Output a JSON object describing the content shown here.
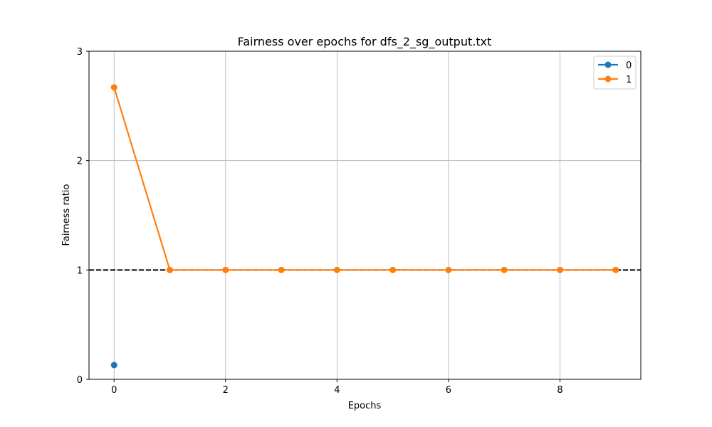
{
  "chart_data": {
    "type": "line",
    "title": "Fairness over epochs for dfs_2_sg_output.txt",
    "xlabel": "Epochs",
    "ylabel": "Fairness ratio",
    "xlim": [
      -0.45,
      9.45
    ],
    "ylim": [
      0,
      3
    ],
    "xticks": [
      0,
      2,
      4,
      6,
      8
    ],
    "yticks": [
      0,
      1,
      2,
      3
    ],
    "grid": true,
    "legend_position": "top-right",
    "reference_line": {
      "y": 1,
      "style": "dashed",
      "color": "#000000"
    },
    "series": [
      {
        "name": "0",
        "color": "#1f77b4",
        "x": [
          0
        ],
        "y": [
          0.13
        ]
      },
      {
        "name": "1",
        "color": "#ff7f0e",
        "x": [
          0,
          1,
          2,
          3,
          4,
          5,
          6,
          7,
          8,
          9
        ],
        "y": [
          2.67,
          1,
          1,
          1,
          1,
          1,
          1,
          1,
          1,
          1
        ]
      }
    ]
  }
}
